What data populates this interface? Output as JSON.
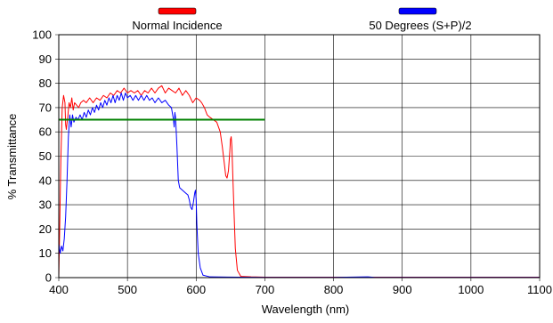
{
  "chart_data": {
    "type": "line",
    "xlabel": "Wavelength (nm)",
    "ylabel": "% Transmittance",
    "xlim": [
      400,
      1100
    ],
    "ylim": [
      0,
      100
    ],
    "xticks": [
      400,
      500,
      600,
      700,
      800,
      900,
      1000,
      1100
    ],
    "yticks": [
      0,
      10,
      20,
      30,
      40,
      50,
      60,
      70,
      80,
      90,
      100
    ],
    "grid": true,
    "legend_position": "top",
    "series": [
      {
        "name": "Normal Incidence",
        "color": "#ff0000",
        "points": [
          [
            400,
            0
          ],
          [
            401,
            15
          ],
          [
            403,
            48
          ],
          [
            405,
            70
          ],
          [
            407,
            75
          ],
          [
            409,
            72
          ],
          [
            410,
            63
          ],
          [
            411,
            61
          ],
          [
            413,
            66
          ],
          [
            415,
            72
          ],
          [
            417,
            70
          ],
          [
            419,
            74
          ],
          [
            421,
            69
          ],
          [
            423,
            72
          ],
          [
            426,
            71
          ],
          [
            429,
            70
          ],
          [
            432,
            72
          ],
          [
            436,
            73
          ],
          [
            440,
            72
          ],
          [
            445,
            74
          ],
          [
            450,
            72
          ],
          [
            455,
            74
          ],
          [
            460,
            73
          ],
          [
            465,
            75
          ],
          [
            470,
            74
          ],
          [
            475,
            76
          ],
          [
            480,
            75
          ],
          [
            485,
            77
          ],
          [
            490,
            76
          ],
          [
            495,
            78
          ],
          [
            500,
            76
          ],
          [
            505,
            77
          ],
          [
            510,
            76
          ],
          [
            515,
            77
          ],
          [
            520,
            75
          ],
          [
            525,
            77
          ],
          [
            530,
            76
          ],
          [
            535,
            78
          ],
          [
            540,
            76
          ],
          [
            545,
            78
          ],
          [
            550,
            79
          ],
          [
            555,
            76
          ],
          [
            560,
            78
          ],
          [
            565,
            77
          ],
          [
            570,
            76
          ],
          [
            575,
            78
          ],
          [
            580,
            75
          ],
          [
            585,
            77
          ],
          [
            590,
            75
          ],
          [
            595,
            72
          ],
          [
            600,
            74
          ],
          [
            605,
            73
          ],
          [
            608,
            72
          ],
          [
            612,
            70
          ],
          [
            616,
            67
          ],
          [
            620,
            66
          ],
          [
            625,
            65
          ],
          [
            630,
            64
          ],
          [
            635,
            60
          ],
          [
            638,
            54
          ],
          [
            641,
            47
          ],
          [
            643,
            42
          ],
          [
            645,
            41
          ],
          [
            647,
            44
          ],
          [
            649,
            52
          ],
          [
            650,
            57
          ],
          [
            651,
            58
          ],
          [
            652,
            54
          ],
          [
            653,
            45
          ],
          [
            655,
            28
          ],
          [
            657,
            12
          ],
          [
            660,
            3
          ],
          [
            665,
            0.5
          ],
          [
            680,
            0.3
          ],
          [
            700,
            0.2
          ],
          [
            800,
            0.2
          ],
          [
            900,
            0.2
          ],
          [
            1000,
            0.2
          ],
          [
            1100,
            0.2
          ]
        ]
      },
      {
        "name": "50 Degrees (S+P)/2",
        "color": "#0000ff",
        "points": [
          [
            400,
            14
          ],
          [
            402,
            10
          ],
          [
            404,
            13
          ],
          [
            406,
            11
          ],
          [
            408,
            16
          ],
          [
            410,
            25
          ],
          [
            412,
            40
          ],
          [
            414,
            58
          ],
          [
            416,
            67
          ],
          [
            418,
            62
          ],
          [
            420,
            67
          ],
          [
            422,
            64
          ],
          [
            425,
            66
          ],
          [
            428,
            65
          ],
          [
            431,
            67
          ],
          [
            434,
            65
          ],
          [
            437,
            68
          ],
          [
            440,
            66
          ],
          [
            443,
            69
          ],
          [
            446,
            67
          ],
          [
            449,
            70
          ],
          [
            452,
            68
          ],
          [
            455,
            71
          ],
          [
            458,
            69
          ],
          [
            461,
            72
          ],
          [
            464,
            70
          ],
          [
            467,
            73
          ],
          [
            470,
            71
          ],
          [
            473,
            74
          ],
          [
            476,
            72
          ],
          [
            479,
            75
          ],
          [
            482,
            72
          ],
          [
            485,
            75
          ],
          [
            488,
            73
          ],
          [
            491,
            76
          ],
          [
            494,
            73
          ],
          [
            497,
            76
          ],
          [
            500,
            74
          ],
          [
            504,
            75
          ],
          [
            508,
            73
          ],
          [
            512,
            75
          ],
          [
            516,
            73
          ],
          [
            520,
            75
          ],
          [
            524,
            73
          ],
          [
            528,
            75
          ],
          [
            532,
            73
          ],
          [
            536,
            74
          ],
          [
            540,
            72
          ],
          [
            545,
            74
          ],
          [
            550,
            72
          ],
          [
            555,
            73
          ],
          [
            560,
            71
          ],
          [
            564,
            70
          ],
          [
            567,
            65
          ],
          [
            568,
            62
          ],
          [
            569,
            68
          ],
          [
            570,
            66
          ],
          [
            572,
            54
          ],
          [
            574,
            40
          ],
          [
            576,
            37
          ],
          [
            580,
            36
          ],
          [
            584,
            35
          ],
          [
            588,
            34
          ],
          [
            590,
            32
          ],
          [
            592,
            29
          ],
          [
            594,
            28
          ],
          [
            596,
            31
          ],
          [
            598,
            35
          ],
          [
            599,
            36
          ],
          [
            600,
            32
          ],
          [
            601,
            22
          ],
          [
            603,
            10
          ],
          [
            606,
            4
          ],
          [
            610,
            1
          ],
          [
            620,
            0.3
          ],
          [
            700,
            0.1
          ],
          [
            800,
            0.1
          ],
          [
            850,
            0.3
          ],
          [
            860,
            0.1
          ],
          [
            900,
            0.1
          ],
          [
            1000,
            0.1
          ],
          [
            1100,
            0.1
          ]
        ]
      },
      {
        "color": "#008000",
        "points": [
          [
            400,
            65
          ],
          [
            700,
            65
          ]
        ]
      }
    ]
  }
}
